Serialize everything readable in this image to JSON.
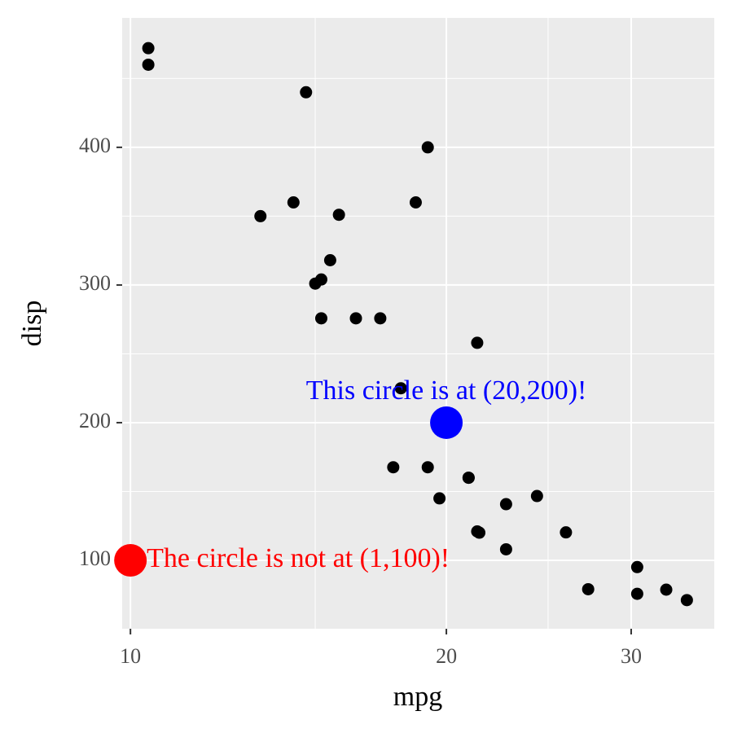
{
  "chart_data": {
    "type": "scatter",
    "x_label": "mpg",
    "y_label": "disp",
    "x_scale": "log",
    "xlim": [
      9.82,
      36.0
    ],
    "ylim": [
      50.3,
      494
    ],
    "xticks": [
      10,
      20,
      30
    ],
    "yticks": [
      100,
      200,
      300,
      400
    ],
    "x_minor_ticks": [
      15,
      25
    ],
    "y_minor_ticks": [
      150,
      250,
      350,
      450
    ],
    "grid": true,
    "series": [
      {
        "color": "#000000",
        "x": [
          21,
          21,
          22.8,
          21.4,
          18.7,
          18.1,
          14.3,
          24.4,
          22.8,
          19.2,
          17.8,
          16.4,
          17.3,
          15.2,
          10.4,
          10.4,
          14.7,
          32.4,
          30.4,
          33.9,
          21.5,
          15.5,
          15.2,
          13.3,
          19.2,
          27.3,
          26,
          30.4,
          15.8,
          19.7,
          15,
          21.4
        ],
        "values": [
          160,
          160,
          108,
          258,
          360,
          225,
          360,
          146.7,
          140.8,
          167.6,
          167.6,
          275.8,
          275.8,
          275.8,
          472,
          460,
          440,
          78.7,
          75.7,
          71.1,
          120.1,
          318,
          304,
          350,
          400,
          79,
          120.3,
          95.1,
          351,
          145,
          301,
          121
        ]
      }
    ],
    "annotations": [
      {
        "x": 20,
        "y": 200,
        "color": "#0000ff",
        "label": "This circle is at (20,200)!",
        "placement": "above"
      },
      {
        "x": 10,
        "y": 100,
        "color": "#ff0000",
        "label": "The circle is not at (1,100)!",
        "placement": "right"
      }
    ]
  }
}
